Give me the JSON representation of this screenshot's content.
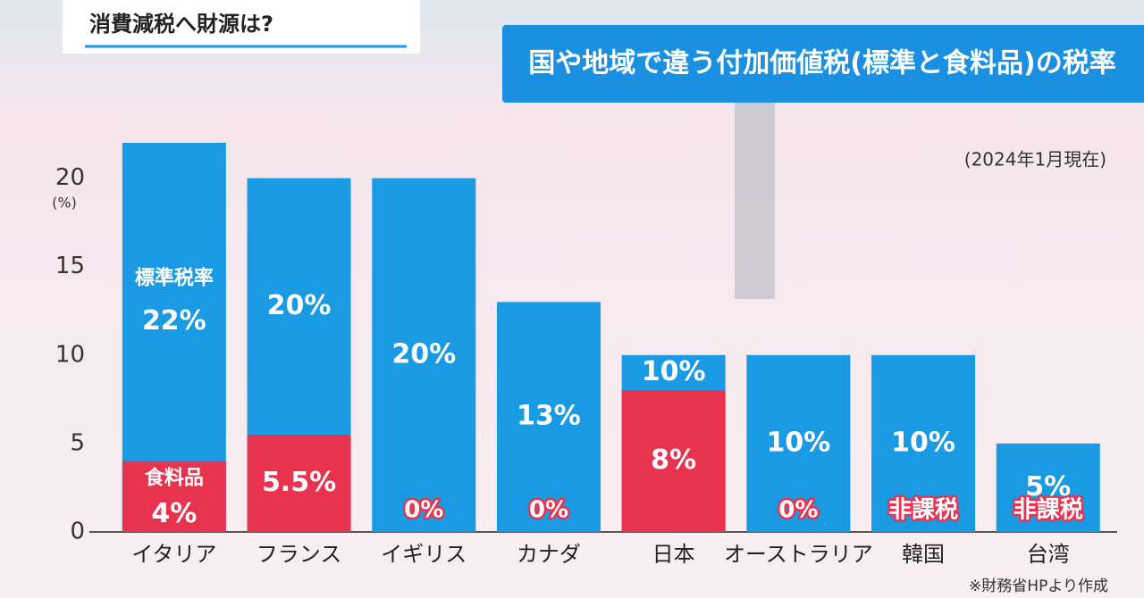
{
  "header": {
    "subtitle": "消費減税へ財源は?"
  },
  "chart_data": {
    "type": "bar",
    "title": "国や地域で違う付加価値税(標準と食料品)の税率",
    "note": "(2024年1月現在)",
    "y_unit": "(%)",
    "source": "※財務省HPより作成",
    "categories": [
      "イタリア",
      "フランス",
      "イギリス",
      "カナダ",
      "日本",
      "オーストラリア",
      "韓国",
      "台湾"
    ],
    "series": [
      {
        "name": "標準税率",
        "color": "#1b9ae4",
        "values": [
          22,
          20,
          20,
          13,
          10,
          10,
          10,
          5
        ],
        "value_labels": [
          "22%",
          "20%",
          "20%",
          "13%",
          "10%",
          "10%",
          "10%",
          "5%"
        ]
      },
      {
        "name": "食料品",
        "color": "#e8334f",
        "values": [
          4,
          5.5,
          0,
          0,
          8,
          0,
          0,
          0
        ],
        "value_labels": [
          "4%",
          "5.5%",
          "0%",
          "0%",
          "8%",
          "0%",
          "非課税",
          "非課税"
        ]
      }
    ],
    "ylim": [
      0,
      22
    ],
    "yticks": [
      0,
      5,
      10,
      15,
      20
    ],
    "grid": false
  }
}
